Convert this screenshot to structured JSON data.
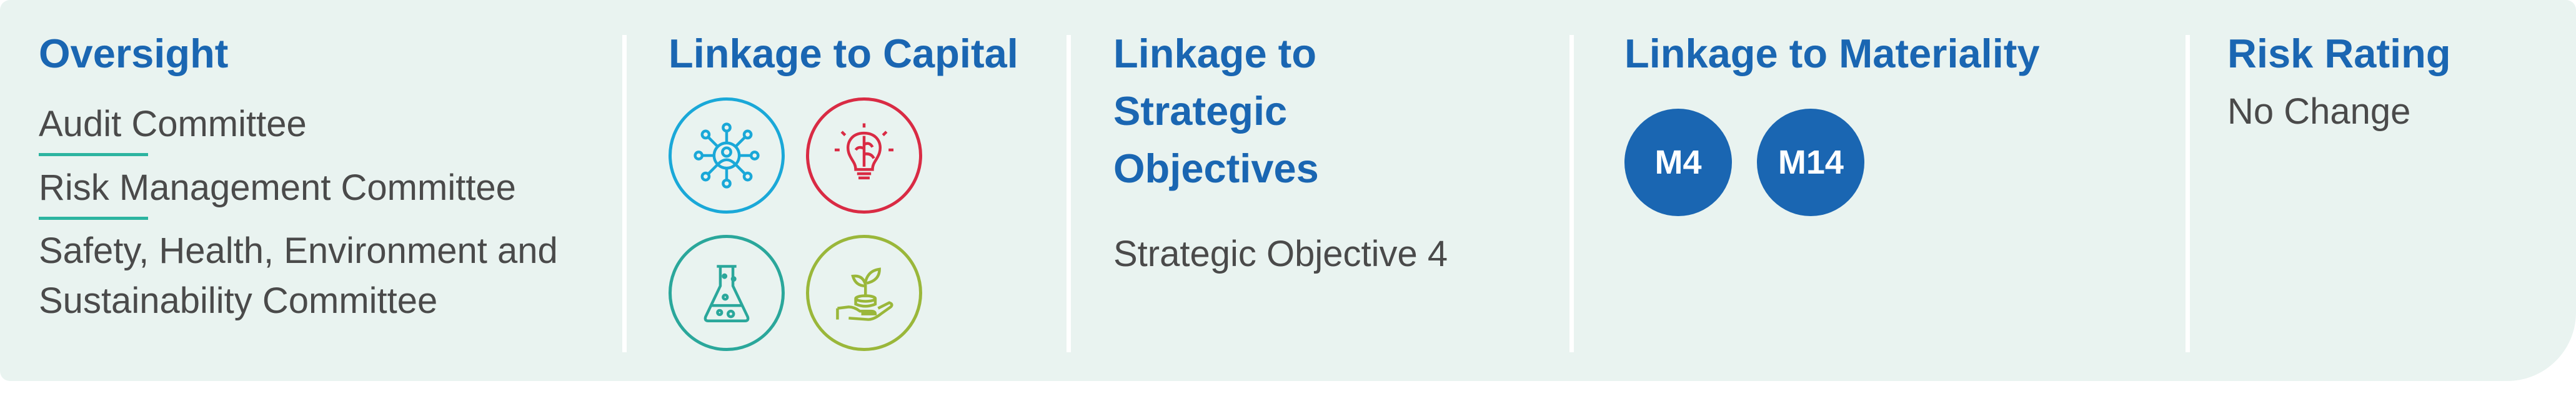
{
  "oversight": {
    "heading": "Oversight",
    "committees": [
      "Audit Committee",
      "Risk Management Committee",
      "Safety, Health, Environment and Sustainability Committee"
    ]
  },
  "capital": {
    "heading": "Linkage to Capital",
    "icons": [
      {
        "name": "human-network-icon",
        "color": "#1aa8d8"
      },
      {
        "name": "lightbulb-brain-icon",
        "color": "#d92b44"
      },
      {
        "name": "flask-icon",
        "color": "#2aa79b"
      },
      {
        "name": "hand-plant-icon",
        "color": "#9ab73a"
      }
    ]
  },
  "strategic": {
    "heading": "Linkage to Strategic Objectives",
    "value": "Strategic Objective 4"
  },
  "materiality": {
    "heading": "Linkage to Materiality",
    "badges": [
      "M4",
      "M14"
    ],
    "badge_color": "#1a66b2"
  },
  "risk": {
    "heading": "Risk Rating",
    "value": "No Change"
  },
  "colors": {
    "heading": "#1a66b2",
    "panel_bg": "#e9f3f0",
    "underline": "#2cb4a0"
  }
}
